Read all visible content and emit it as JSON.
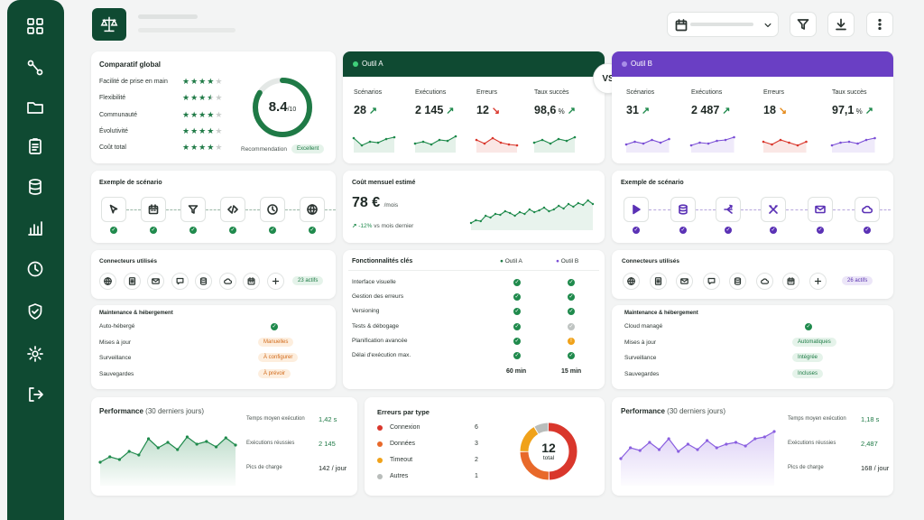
{
  "colors": {
    "tool_a": "#0f4a32",
    "tool_b": "#6a3fc4",
    "accent_green": "#1f8a4c"
  },
  "sidebar": {
    "icons": [
      "grid-icon",
      "workflow-icon",
      "folder-icon",
      "clipboard-icon",
      "database-icon",
      "bar-chart-icon",
      "clock-icon",
      "shield-icon",
      "gear-icon",
      "logout-icon"
    ]
  },
  "header": {
    "logo_icon": "scale-icon",
    "date_icon": "calendar-icon",
    "chevron_icon": "chevron-down-icon",
    "filter_icon": "filter-icon",
    "download_icon": "download-icon",
    "more_icon": "more-vertical-icon"
  },
  "global": {
    "title": "Comparatif global",
    "criteria": [
      {
        "label": "Facilité de prise en main",
        "stars": 4
      },
      {
        "label": "Flexibilité",
        "stars": 3.5
      },
      {
        "label": "Communauté",
        "stars": 4
      },
      {
        "label": "Évolutivité",
        "stars": 4
      },
      {
        "label": "Coût total",
        "stars": 4
      }
    ],
    "score": "8.4",
    "score_unit": "/10",
    "score_fraction": 0.84,
    "reco_label": "Recommendation",
    "reco_value": "Excellent"
  },
  "vs_label": "VS",
  "tool_a": {
    "name": "Outil A",
    "kpis": [
      {
        "label": "Scénarios",
        "value": "28",
        "unit": "",
        "trend": "up"
      },
      {
        "label": "Exécutions",
        "value": "2 145",
        "unit": "",
        "trend": "up"
      },
      {
        "label": "Erreurs",
        "value": "12",
        "unit": "",
        "trend": "down"
      },
      {
        "label": "Taux succès",
        "value": "98,6",
        "unit": "%",
        "trend": "up"
      }
    ],
    "scenario_title": "Exemple de scénario",
    "scenario_steps": [
      "cursor-icon",
      "calendar-icon",
      "filter-icon",
      "code-icon",
      "clock-icon",
      "globe-icon"
    ],
    "connectors_title": "Connecteurs utilisés",
    "connectors": [
      "globe-icon",
      "sheet-icon",
      "mail-icon",
      "chat-icon",
      "database-icon",
      "cloud-icon",
      "calendar-icon",
      "plus-icon"
    ],
    "connectors_badge": "23 actifs",
    "hosting_title": "Maintenance & hébergement",
    "hosting": [
      {
        "label": "Auto-hébergé",
        "value": "check"
      },
      {
        "label": "Mises à jour",
        "value": "Manuelles"
      },
      {
        "label": "Surveillance",
        "value": "À configurer"
      },
      {
        "label": "Sauvegardes",
        "value": "À prévoir"
      }
    ],
    "perf_title": "Performance",
    "perf_sub": "(30 derniers jours)",
    "perf": [
      {
        "label": "Temps moyen exécution",
        "value": "1,42 s"
      },
      {
        "label": "Exécutions réussies",
        "value": "2 145"
      },
      {
        "label": "Pics de charge",
        "value": "142 / jour"
      }
    ]
  },
  "tool_b": {
    "name": "Outil B",
    "kpis": [
      {
        "label": "Scénarios",
        "value": "31",
        "unit": "",
        "trend": "up"
      },
      {
        "label": "Exécutions",
        "value": "2 487",
        "unit": "",
        "trend": "up"
      },
      {
        "label": "Erreurs",
        "value": "18",
        "unit": "",
        "trend": "warn"
      },
      {
        "label": "Taux succès",
        "value": "97,1",
        "unit": "%",
        "trend": "up"
      }
    ],
    "scenario_title": "Exemple de scénario",
    "scenario_steps": [
      "play-icon",
      "database-icon",
      "split-icon",
      "tools-icon",
      "mail-icon",
      "cloud-icon"
    ],
    "connectors_title": "Connecteurs utilisés",
    "connectors": [
      "globe-icon",
      "sheet-icon",
      "mail-icon",
      "chat-icon",
      "database-icon",
      "cloud-icon",
      "calendar-icon",
      "plus-icon"
    ],
    "connectors_badge": "26 actifs",
    "hosting_title": "Maintenance & hébergement",
    "hosting": [
      {
        "label": "Cloud managé",
        "value": "check"
      },
      {
        "label": "Mises à jour",
        "value": "Automatiques"
      },
      {
        "label": "Surveillance",
        "value": "Intégrée"
      },
      {
        "label": "Sauvegardes",
        "value": "Incluses"
      }
    ],
    "perf_title": "Performance",
    "perf_sub": "(30 derniers jours)",
    "perf": [
      {
        "label": "Temps moyen exécution",
        "value": "1,18 s"
      },
      {
        "label": "Exécutions réussies",
        "value": "2,487"
      },
      {
        "label": "Pics de charge",
        "value": "168 / jour"
      }
    ]
  },
  "cost": {
    "title": "Coût mensuel estimé",
    "value": "78 €",
    "unit": "/mois",
    "delta": "-12%",
    "delta_label": "vs mois dernier"
  },
  "features": {
    "title": "Fonctionnalités clés",
    "col_a": "Outil A",
    "col_b": "Outil B",
    "rows": [
      {
        "label": "Interface visuelle",
        "a": "check",
        "b": "check"
      },
      {
        "label": "Gestion des erreurs",
        "a": "check",
        "b": "check"
      },
      {
        "label": "Versioning",
        "a": "check",
        "b": "check"
      },
      {
        "label": "Tests & débogage",
        "a": "check",
        "b": "partial"
      },
      {
        "label": "Planification avancée",
        "a": "check",
        "b": "warning"
      },
      {
        "label": "Délai d'exécution max.",
        "a": "check",
        "b": "check"
      }
    ],
    "max_a": "60 min",
    "max_b": "15 min"
  },
  "errors": {
    "title": "Erreurs par type",
    "items": [
      {
        "label": "Connexion",
        "value": 6,
        "color": "#d9372c"
      },
      {
        "label": "Données",
        "value": 3,
        "color": "#e8692a"
      },
      {
        "label": "Timeout",
        "value": 2,
        "color": "#f0a21a"
      },
      {
        "label": "Autres",
        "value": 1,
        "color": "#b9bdbb"
      }
    ],
    "total": "12",
    "total_label": "total"
  }
}
